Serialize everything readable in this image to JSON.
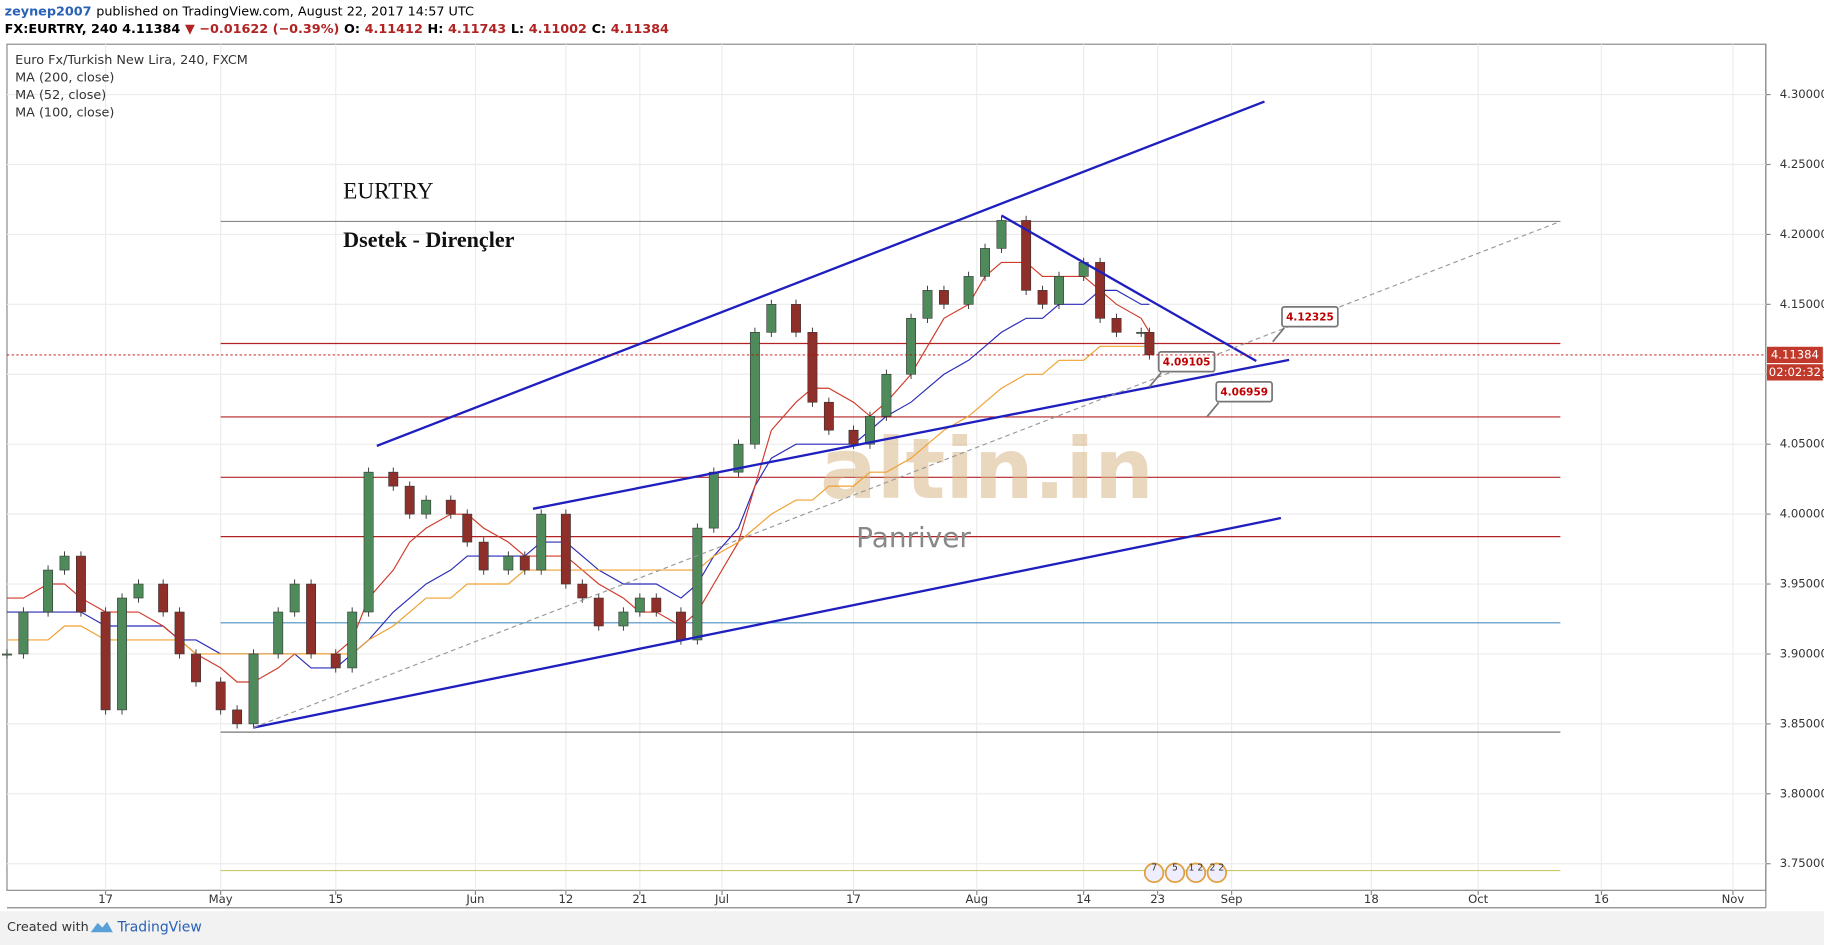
{
  "header": {
    "author": "zeynep2007",
    "published": "published on TradingView.com, August 22, 2017 14:57 UTC",
    "quote": [
      {
        "text": "FX:EURTRY, 240  4.11384",
        "color": "#000000"
      },
      {
        "text": "▼ −0.01622 (−0.39%)",
        "color": "#b22222"
      },
      {
        "text": "O:",
        "color": "#000000"
      },
      {
        "text": "4.11412",
        "color": "#b22222"
      },
      {
        "text": "H:",
        "color": "#000000"
      },
      {
        "text": "4.11743",
        "color": "#b22222"
      },
      {
        "text": "L:",
        "color": "#000000"
      },
      {
        "text": "4.11002",
        "color": "#b22222"
      },
      {
        "text": "C:",
        "color": "#000000"
      },
      {
        "text": "4.11384",
        "color": "#b22222"
      }
    ]
  },
  "footer": {
    "created": "Created with",
    "brand": "TradingView"
  },
  "chart_data": {
    "type": "candlestick",
    "x": [
      "2017-04-05",
      "2017-04-07",
      "2017-04-10",
      "2017-04-12",
      "2017-04-14",
      "2017-04-17",
      "2017-04-19",
      "2017-04-21",
      "2017-04-24",
      "2017-04-26",
      "2017-04-28",
      "2017-05-01",
      "2017-05-03",
      "2017-05-05",
      "2017-05-08",
      "2017-05-10",
      "2017-05-12",
      "2017-05-15",
      "2017-05-17",
      "2017-05-19",
      "2017-05-22",
      "2017-05-24",
      "2017-05-26",
      "2017-05-29",
      "2017-05-31",
      "2017-06-02",
      "2017-06-05",
      "2017-06-07",
      "2017-06-09",
      "2017-06-12",
      "2017-06-14",
      "2017-06-16",
      "2017-06-19",
      "2017-06-21",
      "2017-06-23",
      "2017-06-26",
      "2017-06-28",
      "2017-06-30",
      "2017-07-03",
      "2017-07-05",
      "2017-07-07",
      "2017-07-10",
      "2017-07-12",
      "2017-07-14",
      "2017-07-17",
      "2017-07-19",
      "2017-07-21",
      "2017-07-24",
      "2017-07-26",
      "2017-07-28",
      "2017-07-31",
      "2017-08-02",
      "2017-08-04",
      "2017-08-07",
      "2017-08-09",
      "2017-08-11",
      "2017-08-14",
      "2017-08-16",
      "2017-08-18",
      "2017-08-21",
      "2017-08-22"
    ],
    "series": [
      {
        "name": "Euro Fx/Turkish New Lira, 240, FXCM",
        "color": "#4f8a5b",
        "down_color": "#8e2f2a",
        "values": [
          3.9,
          3.93,
          3.96,
          3.97,
          3.93,
          3.86,
          3.94,
          3.95,
          3.93,
          3.9,
          3.88,
          3.86,
          3.85,
          3.9,
          3.93,
          3.95,
          3.9,
          3.89,
          3.93,
          4.03,
          4.02,
          4.0,
          4.01,
          4.0,
          3.98,
          3.96,
          3.97,
          3.96,
          4.0,
          3.95,
          3.94,
          3.92,
          3.93,
          3.94,
          3.93,
          3.91,
          3.99,
          4.03,
          4.05,
          4.13,
          4.15,
          4.13,
          4.08,
          4.06,
          4.05,
          4.07,
          4.1,
          4.14,
          4.16,
          4.15,
          4.17,
          4.19,
          4.21,
          4.16,
          4.15,
          4.17,
          4.18,
          4.14,
          4.13,
          4.13,
          4.11384
        ]
      },
      {
        "name": "MA (200, close)",
        "color": "#2b2bb8",
        "values": [
          3.93,
          3.93,
          3.93,
          3.93,
          3.93,
          3.92,
          3.92,
          3.92,
          3.92,
          3.91,
          3.91,
          3.9,
          3.9,
          3.9,
          3.9,
          3.9,
          3.89,
          3.89,
          3.9,
          3.91,
          3.93,
          3.94,
          3.95,
          3.96,
          3.97,
          3.97,
          3.97,
          3.97,
          3.98,
          3.98,
          3.97,
          3.96,
          3.95,
          3.95,
          3.95,
          3.94,
          3.95,
          3.97,
          3.99,
          4.02,
          4.04,
          4.05,
          4.05,
          4.05,
          4.05,
          4.06,
          4.07,
          4.08,
          4.09,
          4.1,
          4.11,
          4.12,
          4.13,
          4.14,
          4.14,
          4.15,
          4.15,
          4.16,
          4.16,
          4.15,
          4.15
        ]
      },
      {
        "name": "MA (52, close)",
        "color": "#d03a2a",
        "values": [
          3.94,
          3.94,
          3.95,
          3.95,
          3.94,
          3.93,
          3.93,
          3.93,
          3.92,
          3.91,
          3.9,
          3.89,
          3.88,
          3.88,
          3.89,
          3.9,
          3.9,
          3.9,
          3.91,
          3.94,
          3.96,
          3.98,
          3.99,
          4.0,
          4.0,
          3.99,
          3.98,
          3.97,
          3.97,
          3.97,
          3.96,
          3.95,
          3.94,
          3.93,
          3.93,
          3.92,
          3.93,
          3.95,
          3.98,
          4.02,
          4.06,
          4.08,
          4.09,
          4.09,
          4.08,
          4.07,
          4.08,
          4.1,
          4.12,
          4.14,
          4.15,
          4.17,
          4.18,
          4.18,
          4.17,
          4.17,
          4.17,
          4.16,
          4.15,
          4.14,
          4.13
        ]
      },
      {
        "name": "MA (100, close)",
        "color": "#f0a030",
        "values": [
          3.91,
          3.91,
          3.91,
          3.92,
          3.92,
          3.91,
          3.91,
          3.91,
          3.91,
          3.91,
          3.9,
          3.9,
          3.9,
          3.9,
          3.9,
          3.9,
          3.9,
          3.9,
          3.9,
          3.91,
          3.92,
          3.93,
          3.94,
          3.94,
          3.95,
          3.95,
          3.95,
          3.96,
          3.96,
          3.96,
          3.96,
          3.96,
          3.96,
          3.96,
          3.96,
          3.96,
          3.96,
          3.97,
          3.98,
          3.99,
          4.0,
          4.01,
          4.01,
          4.02,
          4.02,
          4.03,
          4.03,
          4.04,
          4.05,
          4.06,
          4.07,
          4.08,
          4.09,
          4.1,
          4.1,
          4.11,
          4.11,
          4.12,
          4.12,
          4.12,
          4.12
        ]
      }
    ],
    "xlim": [
      "2017-04-05",
      "2017-11-05"
    ],
    "xticks": [
      {
        "value": "2017-04-17",
        "label": "17"
      },
      {
        "value": "2017-05-01",
        "label": "May"
      },
      {
        "value": "2017-05-15",
        "label": "15"
      },
      {
        "value": "2017-06-01",
        "label": "Jun"
      },
      {
        "value": "2017-06-12",
        "label": "12"
      },
      {
        "value": "2017-06-21",
        "label": "21"
      },
      {
        "value": "2017-07-01",
        "label": "Jul"
      },
      {
        "value": "2017-07-17",
        "label": "17"
      },
      {
        "value": "2017-08-01",
        "label": "Aug"
      },
      {
        "value": "2017-08-14",
        "label": "14"
      },
      {
        "value": "2017-08-23",
        "label": "23"
      },
      {
        "value": "2017-09-01",
        "label": "Sep"
      },
      {
        "value": "2017-09-18",
        "label": "18"
      },
      {
        "value": "2017-10-01",
        "label": "Oct"
      },
      {
        "value": "2017-10-16",
        "label": "16"
      },
      {
        "value": "2017-11-01",
        "label": "Nov"
      }
    ],
    "ylim": [
      3.731,
      4.336
    ],
    "yticks": [
      {
        "value": 3.75,
        "label": "3.75000"
      },
      {
        "value": 3.8,
        "label": "3.80000"
      },
      {
        "value": 3.85,
        "label": "3.85000"
      },
      {
        "value": 3.9,
        "label": "3.90000"
      },
      {
        "value": 3.95,
        "label": "3.95000"
      },
      {
        "value": 4.0,
        "label": "4.00000"
      },
      {
        "value": 4.05,
        "label": "4.05000"
      },
      {
        "value": 4.1,
        "label": "4.10000"
      },
      {
        "value": 4.15,
        "label": "4.15000"
      },
      {
        "value": 4.2,
        "label": "4.20000"
      },
      {
        "value": 4.25,
        "label": "4.25000"
      },
      {
        "value": 4.3,
        "label": "4.30000"
      }
    ],
    "grid": true,
    "countdown": "02:02:32",
    "annotations": [
      "EURTRY",
      "Dsetek - Dirençler"
    ],
    "watermark": [
      "altin.in",
      "Panriver"
    ],
    "levels": {
      "from": "2017-05-01",
      "to": "2017-10-11",
      "lines": [
        {
          "value": 4.2093,
          "color": "#888888"
        },
        {
          "value": 4.122,
          "color": "#b22222"
        },
        {
          "value": 4.0695,
          "color": "#b22222"
        },
        {
          "value": 4.0263,
          "color": "#b22222"
        },
        {
          "value": 3.9839,
          "color": "#b22222"
        },
        {
          "value": 3.9223,
          "color": "#4a90c0"
        },
        {
          "value": 3.8441,
          "color": "#777777"
        },
        {
          "value": 3.7451,
          "color": "#c8c864"
        }
      ]
    },
    "trendlines": [
      {
        "from": [
          "2017-05-20",
          4.0488
        ],
        "to": [
          "2017-09-05",
          4.295
        ],
        "color": "#1f1fc0"
      },
      {
        "from": [
          "2017-05-05",
          3.8474
        ],
        "to": [
          "2017-09-07",
          3.9972
        ],
        "color": "#1f1fc0"
      },
      {
        "from": [
          "2017-06-08",
          4.0038
        ],
        "to": [
          "2017-09-08",
          4.1103
        ],
        "color": "#1f1fc0"
      },
      {
        "from": [
          "2017-08-04",
          4.2135
        ],
        "to": [
          "2017-09-04",
          4.1095
        ],
        "color": "#1f1fc0"
      },
      {
        "from": [
          "2017-05-05",
          3.8474
        ],
        "to": [
          "2017-10-11",
          4.2093
        ],
        "color": "#999999",
        "dashed": true
      }
    ],
    "callouts": [
      {
        "date": "2017-09-06",
        "value": 4.12325
      },
      {
        "date": "2017-08-22",
        "value": 4.09105
      },
      {
        "date": "2017-08-29",
        "value": 4.06959
      }
    ],
    "events": [
      "7",
      "5",
      "1 2",
      "2 2"
    ]
  }
}
